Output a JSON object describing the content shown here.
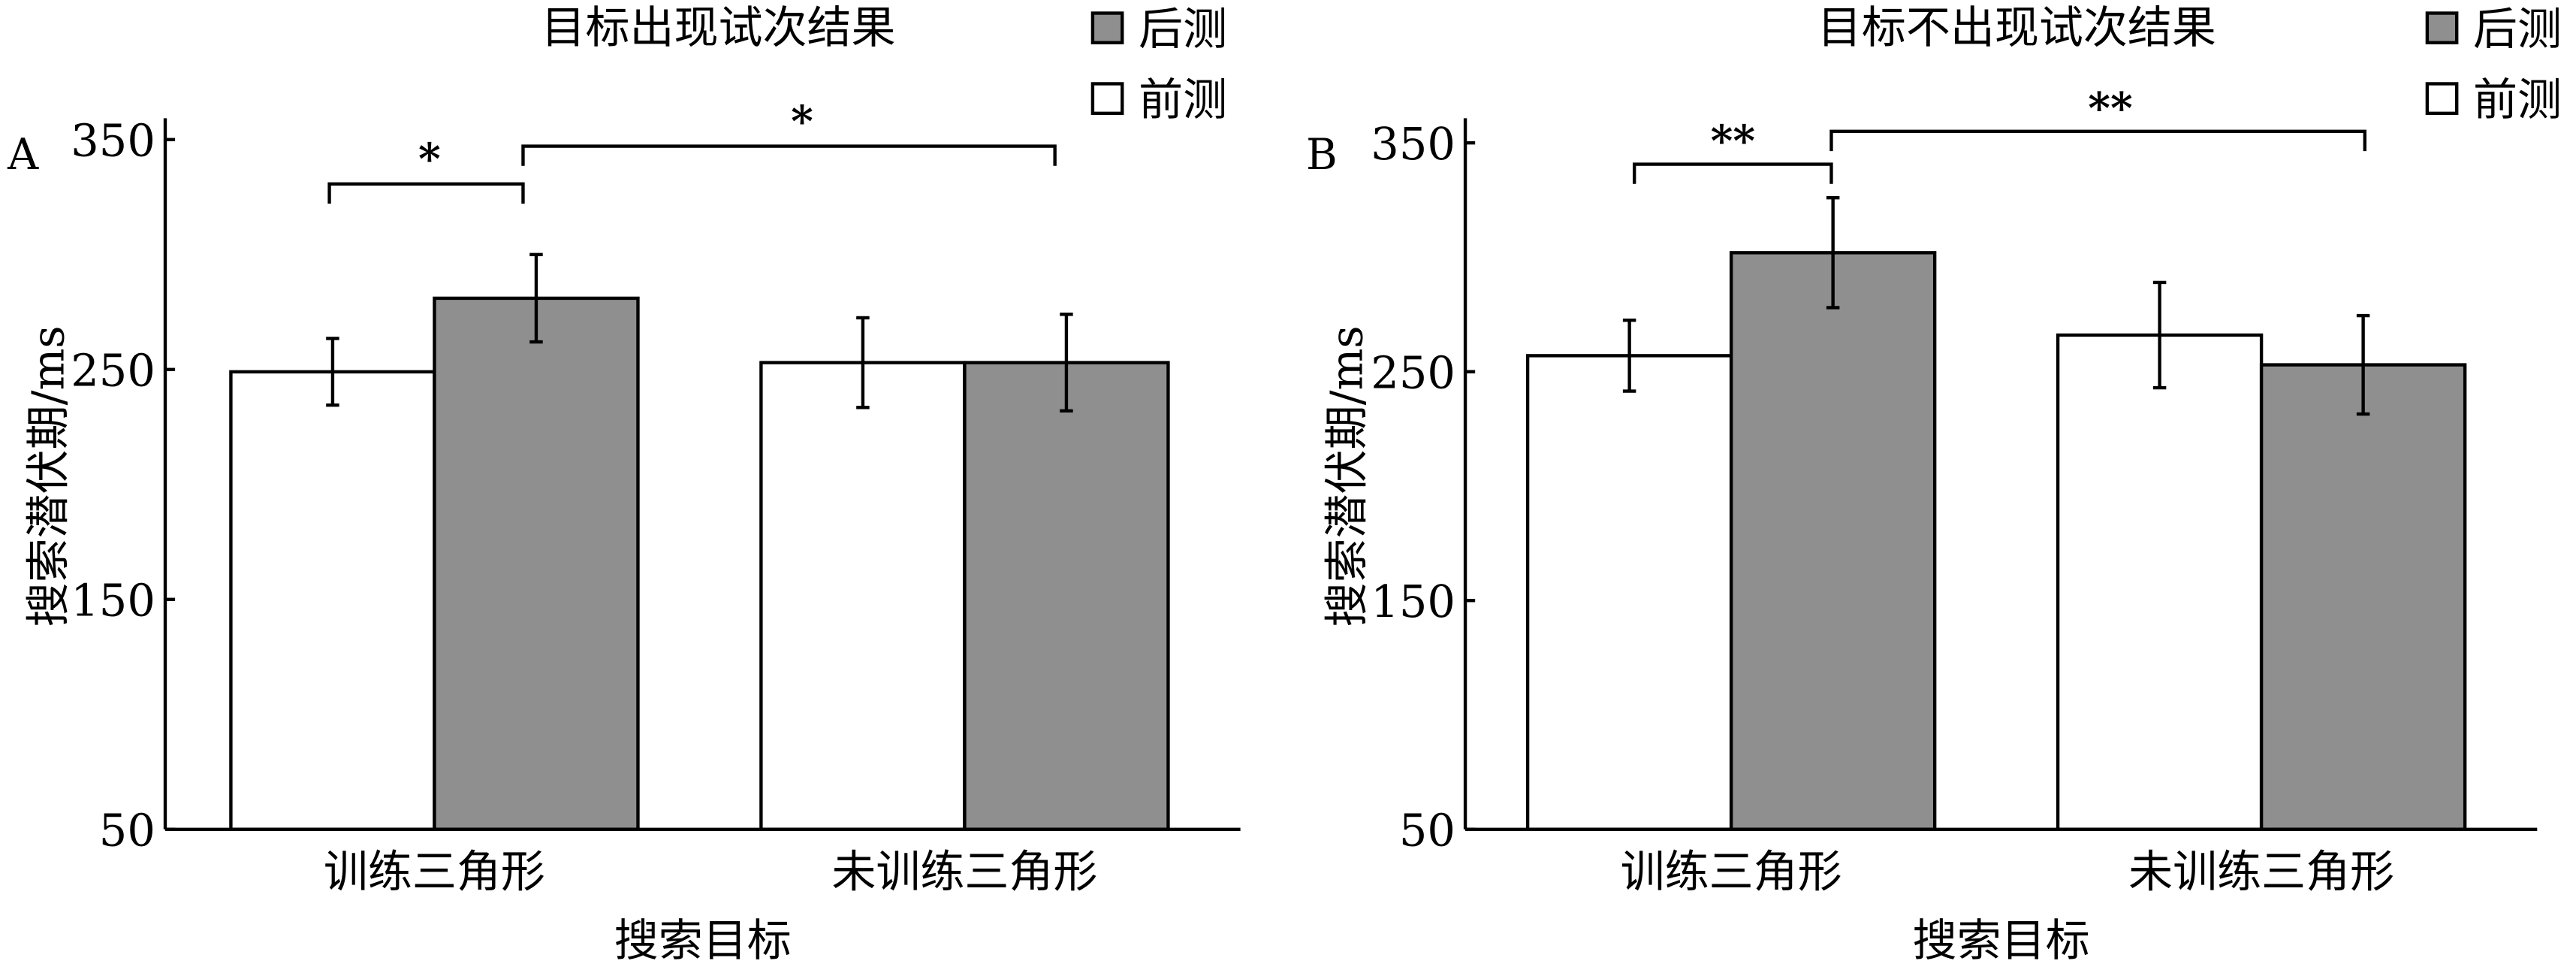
{
  "chart_data": [
    {
      "type": "bar",
      "panel_label": "A",
      "title": "目标出现试次结果",
      "xlabel": "搜索目标",
      "ylabel": "搜索潜伏期/ms",
      "ylim": [
        50,
        350
      ],
      "yticks": [
        50,
        150,
        250,
        350
      ],
      "categories": [
        "训练三角形",
        "未训练三角形"
      ],
      "legend": {
        "placement": "top-right",
        "entries": [
          "后测",
          "前测"
        ]
      },
      "series": [
        {
          "name": "前测",
          "color": "#ffffff",
          "values": [
            249,
            253
          ],
          "errors": [
            14.5,
            19.5
          ]
        },
        {
          "name": "后测",
          "color": "#8f8f8f",
          "values": [
            281,
            253
          ],
          "errors": [
            19,
            21
          ]
        }
      ],
      "annotations": [
        {
          "text": "*",
          "between": "训练三角形 前测 vs 后测"
        },
        {
          "text": "*",
          "between": "训练三角形 后测 vs 未训练三角形 后测"
        }
      ]
    },
    {
      "type": "bar",
      "panel_label": "B",
      "title": "目标不出现试次结果",
      "xlabel": "搜索目标",
      "ylabel": "搜索潜伏期/ms",
      "ylim": [
        50,
        350
      ],
      "yticks": [
        50,
        150,
        250,
        350
      ],
      "categories": [
        "训练三角形",
        "未训练三角形"
      ],
      "legend": {
        "placement": "top-right",
        "entries": [
          "后测",
          "前测"
        ]
      },
      "series": [
        {
          "name": "前测",
          "color": "#ffffff",
          "values": [
            257,
            266
          ],
          "errors": [
            15.5,
            23
          ]
        },
        {
          "name": "后测",
          "color": "#8f8f8f",
          "values": [
            302,
            253
          ],
          "errors": [
            24,
            21.5
          ]
        }
      ],
      "annotations": [
        {
          "text": "**",
          "between": "训练三角形 前测 vs 后测"
        },
        {
          "text": "**",
          "between": "训练三角形 后测 vs 未训练三角形 后测"
        }
      ]
    }
  ]
}
